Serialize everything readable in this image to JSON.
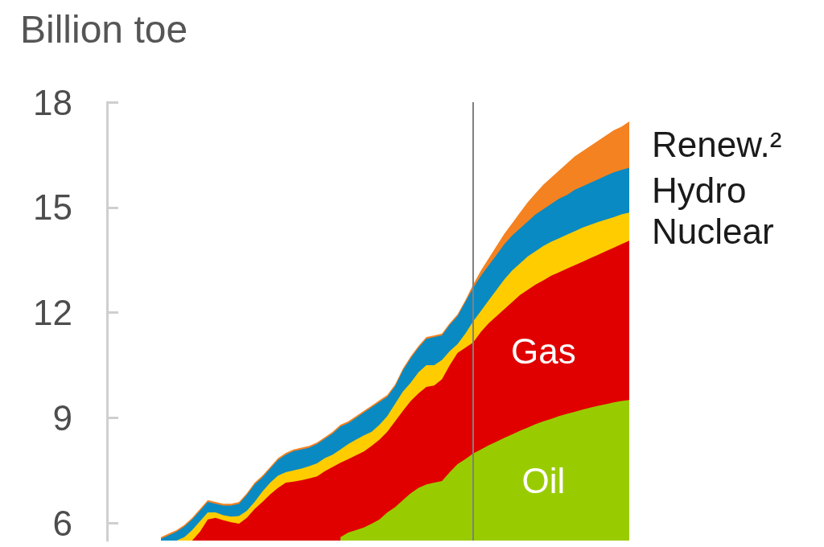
{
  "chart_data": {
    "type": "area",
    "ylabel": "Billion toe",
    "categories": [
      null,
      null,
      null,
      null,
      null,
      null,
      null,
      null,
      null,
      null,
      null,
      null,
      null,
      null,
      null,
      null,
      null,
      null,
      null,
      null,
      null,
      null,
      null,
      null,
      null,
      null,
      null,
      null,
      null,
      null,
      null,
      null,
      null,
      null,
      null,
      null,
      null,
      null,
      null,
      null,
      null,
      null,
      null,
      null,
      null,
      null,
      null,
      null,
      null,
      null,
      null,
      null,
      null,
      null,
      null,
      null,
      null,
      null,
      null,
      null,
      null
    ],
    "ylim": [
      5.5,
      18
    ],
    "yticks": [
      6,
      9,
      12,
      15,
      18
    ],
    "series": [
      {
        "name": "Renew.²",
        "color": "#f58220",
        "values": [
          5.6,
          5.7,
          5.8,
          5.95,
          6.15,
          6.4,
          6.65,
          6.6,
          6.55,
          6.55,
          6.6,
          6.85,
          7.15,
          7.35,
          7.6,
          7.85,
          8.0,
          8.1,
          8.15,
          8.2,
          8.3,
          8.45,
          8.6,
          8.8,
          8.9,
          9.05,
          9.2,
          9.35,
          9.5,
          9.65,
          9.95,
          10.4,
          10.75,
          11.05,
          11.3,
          11.35,
          11.4,
          11.7,
          11.95,
          12.35,
          12.8,
          13.2,
          13.55,
          13.9,
          14.25,
          14.55,
          14.85,
          15.15,
          15.4,
          15.65,
          15.85,
          16.05,
          16.25,
          16.45,
          16.6,
          16.75,
          16.9,
          17.05,
          17.2,
          17.3,
          17.45
        ]
      },
      {
        "name": "Hydro",
        "color": "#0a8ac2",
        "values": [
          5.55,
          5.65,
          5.75,
          5.9,
          6.1,
          6.35,
          6.6,
          6.55,
          6.5,
          6.5,
          6.55,
          6.8,
          7.1,
          7.3,
          7.55,
          7.8,
          7.95,
          8.05,
          8.1,
          8.15,
          8.25,
          8.4,
          8.55,
          8.75,
          8.85,
          9.0,
          9.15,
          9.3,
          9.45,
          9.6,
          9.9,
          10.35,
          10.7,
          11.0,
          11.25,
          11.3,
          11.35,
          11.65,
          11.9,
          12.3,
          12.7,
          13.05,
          13.35,
          13.65,
          13.95,
          14.2,
          14.4,
          14.6,
          14.8,
          14.95,
          15.1,
          15.25,
          15.35,
          15.5,
          15.6,
          15.7,
          15.8,
          15.9,
          16.0,
          16.07,
          16.13
        ]
      },
      {
        "name": "Nuclear",
        "color": "#ffcc00",
        "values": [
          null,
          null,
          5.5,
          5.6,
          5.8,
          6.05,
          6.3,
          6.3,
          6.22,
          6.18,
          6.2,
          6.35,
          6.6,
          6.9,
          7.15,
          7.35,
          7.45,
          7.5,
          7.55,
          7.62,
          7.7,
          7.85,
          7.95,
          8.1,
          8.25,
          8.38,
          8.5,
          8.6,
          8.8,
          9.05,
          9.4,
          9.75,
          10.0,
          10.3,
          10.5,
          10.5,
          10.65,
          10.9,
          11.1,
          11.4,
          11.75,
          12.05,
          12.35,
          12.65,
          12.95,
          13.2,
          13.4,
          13.6,
          13.75,
          13.9,
          14.02,
          14.12,
          14.22,
          14.32,
          14.42,
          14.5,
          14.58,
          14.65,
          14.72,
          14.8,
          14.85
        ]
      },
      {
        "name": "Gas",
        "color": "#e00000",
        "values": [
          null,
          null,
          null,
          null,
          5.5,
          5.75,
          6.1,
          6.15,
          6.08,
          6.02,
          5.98,
          6.15,
          6.4,
          6.6,
          6.82,
          7.0,
          7.15,
          7.18,
          7.22,
          7.27,
          7.33,
          7.48,
          7.6,
          7.72,
          7.82,
          7.93,
          8.04,
          8.2,
          8.38,
          8.6,
          8.9,
          9.2,
          9.48,
          9.7,
          9.88,
          9.92,
          10.1,
          10.5,
          10.85,
          11.0,
          11.15,
          11.45,
          11.7,
          11.9,
          12.1,
          12.3,
          12.5,
          12.65,
          12.8,
          12.92,
          13.05,
          13.15,
          13.25,
          13.35,
          13.45,
          13.55,
          13.65,
          13.75,
          13.85,
          13.95,
          14.05
        ]
      },
      {
        "name": "Oil",
        "color": "#99cc00",
        "values": [
          null,
          null,
          null,
          null,
          null,
          null,
          null,
          null,
          null,
          null,
          null,
          null,
          null,
          null,
          null,
          null,
          null,
          null,
          null,
          null,
          null,
          null,
          null,
          5.6,
          5.73,
          5.8,
          5.87,
          5.98,
          6.1,
          6.3,
          6.45,
          6.65,
          6.85,
          7.0,
          7.1,
          7.15,
          7.2,
          7.45,
          7.68,
          7.82,
          7.98,
          8.1,
          8.22,
          8.32,
          8.43,
          8.53,
          8.63,
          8.72,
          8.82,
          8.9,
          8.97,
          9.05,
          9.11,
          9.17,
          9.23,
          9.29,
          9.34,
          9.39,
          9.44,
          9.48,
          9.51
        ]
      }
    ]
  }
}
